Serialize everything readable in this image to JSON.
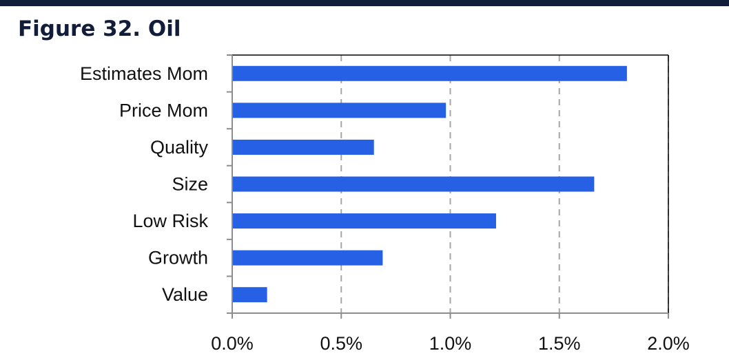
{
  "figure": {
    "title": "Figure 32. Oil"
  },
  "colors": {
    "bar": "#2660e4",
    "header_rule": "#121d3a",
    "title_text": "#121d3a",
    "grid": "#a6a6a6"
  },
  "chart_data": {
    "type": "bar",
    "orientation": "horizontal",
    "categories": [
      "Estimates Mom",
      "Price Mom",
      "Quality",
      "Size",
      "Low Risk",
      "Growth",
      "Value"
    ],
    "values": [
      0.0181,
      0.0098,
      0.0065,
      0.0166,
      0.0121,
      0.0069,
      0.0016
    ],
    "xlim": [
      0,
      0.02
    ],
    "x_ticks": [
      0,
      0.005,
      0.01,
      0.015,
      0.02
    ],
    "x_tick_labels": [
      "0.0%",
      "0.5%",
      "1.0%",
      "1.5%",
      "2.0%"
    ],
    "grid": "vertical dashed",
    "legend": "none",
    "title": "Figure 32. Oil",
    "xlabel": "",
    "ylabel": ""
  }
}
